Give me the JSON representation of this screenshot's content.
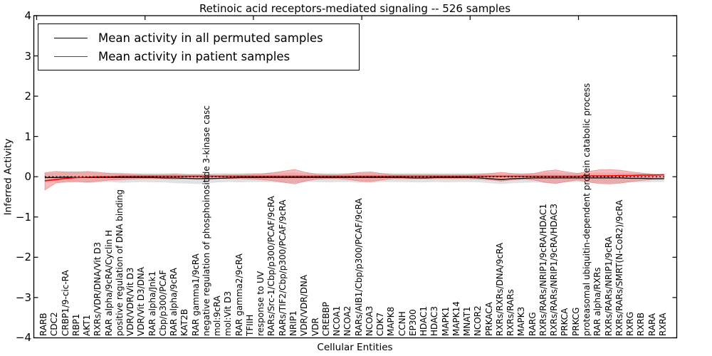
{
  "chart_data": {
    "type": "line",
    "title": "Retinoic acid receptors-mediated signaling -- 526 samples",
    "xlabel": "Cellular Entities",
    "ylabel": "Inferred Activity",
    "ylim": [
      -4,
      4
    ],
    "ytick_labels": [
      "4",
      "3",
      "2",
      "1",
      "0",
      "−1",
      "−2",
      "−3",
      "−4"
    ],
    "grid": false,
    "legend_position": "upper left",
    "legend": [
      {
        "label": "Mean activity in all permuted samples",
        "color": "#000000"
      },
      {
        "label": "Mean activity in patient samples",
        "color": "#ff0000"
      }
    ],
    "colors": {
      "axis": "#000000",
      "zero_line": "#000000",
      "permuted_line": "#000000",
      "permuted_band": "#c8c8c8",
      "patient_line": "#ff0000",
      "patient_band": "#f08080"
    },
    "categories": [
      "RARB",
      "CDC2",
      "CRBP1/9-cic-RA",
      "RBP1",
      "AKT1",
      "RXRs/VDR/DNA/Vit D3",
      "RAR alpha/9cRA/Cyclin H",
      "positive regulation of DNA binding",
      "VDR/VDR/Vit D3",
      "VDR/Vit D3/DNA",
      "RAR alpha/Jnk1",
      "Cbp/p300/PCAF",
      "RAR alpha/9cRA",
      "KAT2B",
      "RAR gamma1/9cRA",
      "negative regulation of phosphoinositide 3-kinase casc",
      "mol:9cRA",
      "mol:Vit D3",
      "RAR gamma2/9cRA",
      "TFIIH",
      "response to UV",
      "RARs/Src-1/Cbp/p300/PCAF/9cRA",
      "RARs/TIF2/Cbp/p300/PCAF/9cRA",
      "NRIP1",
      "VDR/VDR/DNA",
      "VDR",
      "CREBBP",
      "NCOA1",
      "NCOA2",
      "RARs/AIB1/Cbp/p300/PCAF/9cRA",
      "NCOA3",
      "CDK7",
      "MAPK8",
      "CCNH",
      "EP300",
      "HDAC1",
      "HDAC3",
      "MAPK1",
      "MAPK14",
      "MNAT1",
      "NCOR2",
      "PRKACA",
      "RXRs/RXRs/DNA/9cRA",
      "RXRs/RARs",
      "MAPK3",
      "RARG",
      "RXRs/RARs/NRIP1/9cRA/HDAC1",
      "RXRs/RARs/NRIP1/9cRA/HDAC3",
      "PRKCA",
      "PRKCG",
      "proteasomal ubiquitin-dependent protein catabolic process",
      "RAR alpha/RXRs",
      "RXRs/RARs/NRIP1/9cRA",
      "RXRs/RARs/SMRT(N-CoR2)/9cRA",
      "RXRG",
      "RXRB",
      "RARA",
      "RXRA"
    ],
    "series": [
      {
        "name": "Mean activity in all permuted samples",
        "values": [
          -0.02,
          -0.02,
          -0.01,
          -0.02,
          -0.02,
          -0.02,
          -0.02,
          -0.02,
          -0.02,
          -0.02,
          -0.02,
          -0.03,
          -0.03,
          -0.04,
          -0.05,
          -0.05,
          -0.04,
          -0.03,
          -0.02,
          -0.02,
          -0.02,
          -0.02,
          -0.02,
          -0.02,
          -0.02,
          -0.02,
          -0.02,
          -0.02,
          -0.02,
          -0.02,
          -0.02,
          -0.02,
          -0.02,
          -0.02,
          -0.03,
          -0.03,
          -0.02,
          -0.02,
          -0.02,
          -0.02,
          -0.03,
          -0.05,
          -0.07,
          -0.05,
          -0.04,
          -0.03,
          -0.03,
          -0.03,
          -0.03,
          -0.03,
          -0.03,
          -0.03,
          -0.03,
          -0.03,
          -0.04,
          -0.04,
          -0.05,
          -0.05
        ],
        "band_upper": [
          0.09,
          0.1,
          0.11,
          0.11,
          0.11,
          0.1,
          0.1,
          0.1,
          0.09,
          0.09,
          0.09,
          0.09,
          0.09,
          0.08,
          0.08,
          0.08,
          0.09,
          0.09,
          0.09,
          0.09,
          0.09,
          0.1,
          0.1,
          0.1,
          0.09,
          0.09,
          0.09,
          0.09,
          0.09,
          0.1,
          0.1,
          0.09,
          0.09,
          0.09,
          0.09,
          0.09,
          0.09,
          0.09,
          0.09,
          0.09,
          0.09,
          0.09,
          0.08,
          0.08,
          0.09,
          0.09,
          0.1,
          0.1,
          0.09,
          0.09,
          0.09,
          0.1,
          0.1,
          0.1,
          0.09,
          0.09,
          0.08,
          0.08
        ],
        "band_lower": [
          -0.13,
          -0.14,
          -0.15,
          -0.14,
          -0.16,
          -0.14,
          -0.13,
          -0.15,
          -0.14,
          -0.13,
          -0.14,
          -0.14,
          -0.16,
          -0.17,
          -0.18,
          -0.16,
          -0.14,
          -0.13,
          -0.14,
          -0.13,
          -0.13,
          -0.14,
          -0.15,
          -0.15,
          -0.13,
          -0.13,
          -0.14,
          -0.13,
          -0.13,
          -0.15,
          -0.15,
          -0.13,
          -0.13,
          -0.13,
          -0.14,
          -0.14,
          -0.13,
          -0.14,
          -0.13,
          -0.13,
          -0.14,
          -0.16,
          -0.18,
          -0.16,
          -0.15,
          -0.14,
          -0.15,
          -0.16,
          -0.14,
          -0.13,
          -0.14,
          -0.15,
          -0.16,
          -0.15,
          -0.14,
          -0.14,
          -0.13,
          -0.13
        ]
      },
      {
        "name": "Mean activity in patient samples",
        "values": [
          -0.1,
          -0.07,
          -0.04,
          -0.02,
          -0.01,
          0.0,
          0.0,
          0.01,
          0.01,
          0.01,
          0.01,
          0.01,
          0.01,
          0.01,
          0.01,
          0.01,
          0.01,
          0.01,
          0.01,
          0.01,
          0.01,
          0.01,
          0.01,
          0.01,
          0.01,
          0.01,
          0.01,
          0.01,
          0.01,
          0.01,
          0.01,
          0.01,
          0.01,
          0.01,
          0.01,
          0.01,
          0.01,
          0.01,
          0.01,
          0.01,
          0.01,
          0.01,
          0.01,
          0.01,
          0.01,
          0.01,
          0.01,
          0.01,
          0.01,
          0.01,
          0.02,
          0.02,
          0.02,
          0.03,
          0.03,
          0.04,
          0.04,
          0.05
        ],
        "band_upper": [
          0.1,
          0.13,
          0.12,
          0.12,
          0.13,
          0.11,
          0.08,
          0.07,
          0.06,
          0.05,
          0.05,
          0.05,
          0.06,
          0.05,
          0.05,
          0.05,
          0.04,
          0.05,
          0.05,
          0.06,
          0.07,
          0.1,
          0.14,
          0.18,
          0.11,
          0.06,
          0.05,
          0.05,
          0.07,
          0.11,
          0.12,
          0.08,
          0.05,
          0.05,
          0.05,
          0.05,
          0.05,
          0.05,
          0.05,
          0.05,
          0.06,
          0.08,
          0.11,
          0.08,
          0.06,
          0.08,
          0.14,
          0.17,
          0.12,
          0.08,
          0.13,
          0.17,
          0.18,
          0.16,
          0.12,
          0.09,
          0.06,
          0.05
        ],
        "band_lower": [
          -0.33,
          -0.16,
          -0.12,
          -0.12,
          -0.13,
          -0.11,
          -0.08,
          -0.07,
          -0.06,
          -0.05,
          -0.05,
          -0.05,
          -0.06,
          -0.05,
          -0.05,
          -0.05,
          -0.04,
          -0.05,
          -0.05,
          -0.06,
          -0.07,
          -0.1,
          -0.14,
          -0.18,
          -0.11,
          -0.06,
          -0.05,
          -0.05,
          -0.07,
          -0.11,
          -0.12,
          -0.08,
          -0.05,
          -0.05,
          -0.05,
          -0.05,
          -0.05,
          -0.05,
          -0.05,
          -0.05,
          -0.06,
          -0.08,
          -0.11,
          -0.08,
          -0.06,
          -0.08,
          -0.14,
          -0.17,
          -0.12,
          -0.08,
          -0.13,
          -0.17,
          -0.18,
          -0.16,
          -0.12,
          -0.09,
          -0.06,
          -0.05
        ]
      }
    ],
    "zero_line": 0
  }
}
